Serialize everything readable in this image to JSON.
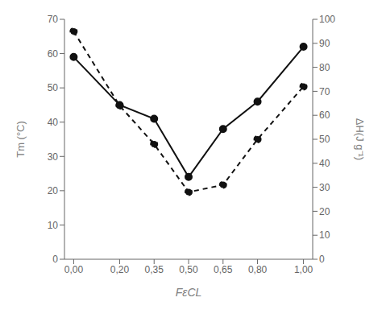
{
  "chart_data": {
    "type": "line",
    "x": [
      0.0,
      0.2,
      0.35,
      0.5,
      0.65,
      0.8,
      1.0
    ],
    "xlabel": "FεCL",
    "ylabel": "Tm (°C)",
    "y2label": "ΔH(J g⁻¹)",
    "xlim": [
      -0.04,
      1.04
    ],
    "xticks": [
      {
        "value": 0.0,
        "label": "0,00"
      },
      {
        "value": 0.2,
        "label": "0,20"
      },
      {
        "value": 0.35,
        "label": "0,35"
      },
      {
        "value": 0.5,
        "label": "0,50"
      },
      {
        "value": 0.65,
        "label": "0,65"
      },
      {
        "value": 0.8,
        "label": "0,80"
      },
      {
        "value": 1.0,
        "label": "1,00"
      }
    ],
    "ylim": [
      0,
      70
    ],
    "yticks": [
      0,
      10,
      20,
      30,
      40,
      50,
      60,
      70
    ],
    "y2lim": [
      0,
      100
    ],
    "y2ticks": [
      0,
      10,
      20,
      30,
      40,
      50,
      60,
      70,
      80,
      90,
      100
    ],
    "grid": false,
    "series": [
      {
        "color": "#111111",
        "line_style": "solid",
        "marker": "circle",
        "values": [
          59,
          45,
          41,
          24,
          38,
          46,
          62
        ]
      },
      {
        "color": "#111111",
        "line_style": "dashed",
        "marker": "circle",
        "axis": "y2",
        "values": [
          95,
          64,
          48,
          28,
          31,
          50,
          72
        ]
      }
    ]
  }
}
